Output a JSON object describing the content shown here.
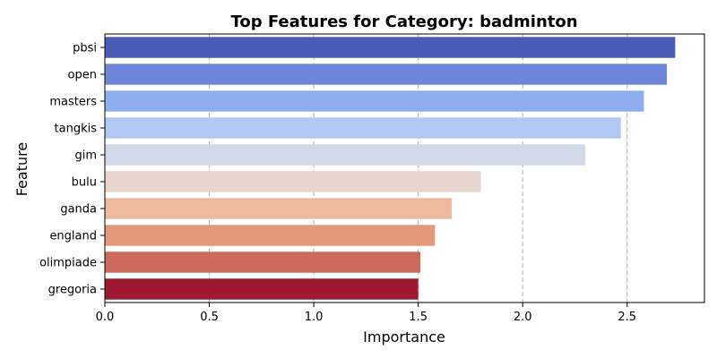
{
  "chart_data": {
    "type": "bar",
    "orientation": "horizontal",
    "title": "Top Features for Category: badminton",
    "xlabel": "Importance",
    "ylabel": "Feature",
    "categories": [
      "pbsi",
      "open",
      "masters",
      "tangkis",
      "gim",
      "bulu",
      "ganda",
      "england",
      "olimpiade",
      "gregoria"
    ],
    "values": [
      2.73,
      2.69,
      2.58,
      2.47,
      2.3,
      1.8,
      1.66,
      1.58,
      1.51,
      1.5
    ],
    "colors": [
      "#4a5bb8",
      "#6e86d9",
      "#8eaef0",
      "#b0c8f2",
      "#d2daea",
      "#e6d6ce",
      "#edba9f",
      "#e4977b",
      "#cd6a5d",
      "#9e1832"
    ],
    "xlim": [
      0,
      2.87
    ],
    "xticks": [
      0.0,
      0.5,
      1.0,
      1.5,
      2.0,
      2.5
    ],
    "xtick_labels": [
      "0.0",
      "0.5",
      "1.0",
      "1.5",
      "2.0",
      "2.5"
    ],
    "grid": "x-dashed",
    "legend": "none"
  }
}
